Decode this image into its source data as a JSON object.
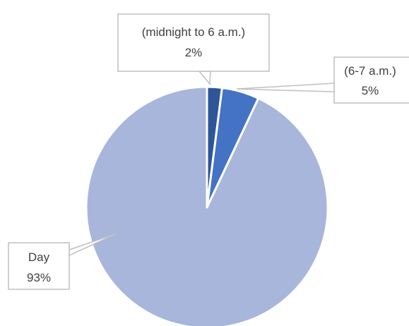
{
  "chart_data": {
    "type": "pie",
    "title": "",
    "categories": [
      "(midnight to 6 a.m.)",
      "(6-7 a.m.)",
      "Day"
    ],
    "values": [
      2,
      5,
      93
    ],
    "percent_labels": [
      "2%",
      "5%",
      "93%"
    ],
    "colors": [
      "#2e5597",
      "#4472c4",
      "#a8b6dc"
    ],
    "legend": "none",
    "data_labels": "callouts"
  }
}
